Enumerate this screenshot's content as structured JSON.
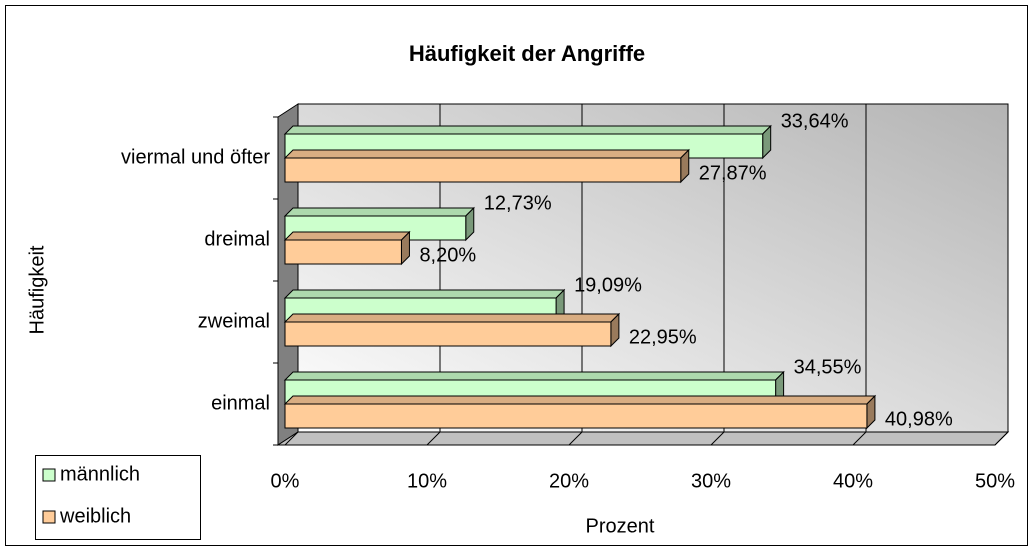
{
  "chart_data": {
    "type": "bar",
    "orientation": "horizontal",
    "title": "Häufigkeit der Angriffe",
    "x_label": "Prozent",
    "y_label": "Häufigkeit",
    "categories": [
      "viermal und öfter",
      "dreimal",
      "zweimal",
      "einmal"
    ],
    "series": [
      {
        "name": "männlich",
        "color": "#ccffcc",
        "values": [
          33.64,
          12.73,
          19.09,
          34.55
        ],
        "value_labels": [
          "33,64%",
          "12,73%",
          "19,09%",
          "34,55%"
        ]
      },
      {
        "name": "weiblich",
        "color": "#ffcc99",
        "values": [
          27.87,
          8.2,
          22.95,
          40.98
        ],
        "value_labels": [
          "27,87%",
          "8,20%",
          "22,95%",
          "40,98%"
        ]
      }
    ],
    "xlim": [
      0,
      50
    ],
    "xticks": [
      {
        "value": 0,
        "label": "0%"
      },
      {
        "value": 10,
        "label": "10%"
      },
      {
        "value": 20,
        "label": "20%"
      },
      {
        "value": 30,
        "label": "30%"
      },
      {
        "value": 40,
        "label": "40%"
      },
      {
        "value": 50,
        "label": "50%"
      }
    ],
    "grid": true,
    "legend": "bottom-left"
  }
}
